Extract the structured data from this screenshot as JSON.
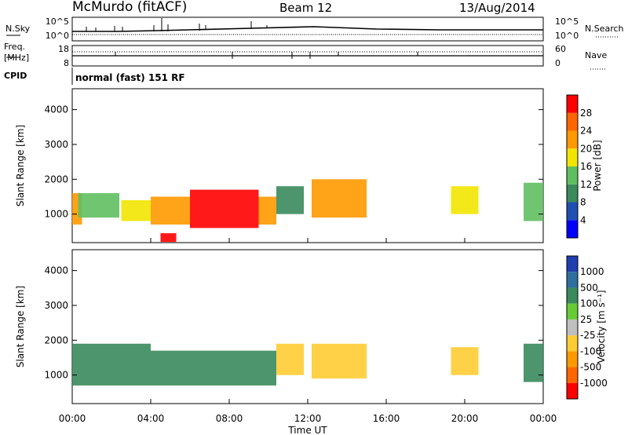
{
  "header": {
    "station": "McMurdo (fitACF)",
    "beam": "Beam 12",
    "date": "13/Aug/2014"
  },
  "status_panel": {
    "nsky_label": "N.Sky",
    "nsearch_label": "N.Search",
    "noise_ticks": [
      "10^5",
      "10^0"
    ],
    "freq_label_1": "Freq.",
    "freq_label_2": "[MHz]",
    "freq_ticks": [
      "18",
      "8"
    ],
    "nave_label": "Nave",
    "nave_ticks": [
      "60",
      "0"
    ],
    "cpid_label": "CPID",
    "cpid_text": "normal (fast) 151 RF"
  },
  "chart_data": [
    {
      "type": "heatmap",
      "name": "power",
      "ylabel": "Slant Range [km]",
      "yticks": [
        "1000",
        "2000",
        "3000",
        "4000"
      ],
      "ylim": [
        180,
        4600
      ],
      "colorbar_label": "Power [dB]",
      "colorbar_ticks": [
        "4",
        "8",
        "12",
        "16",
        "20",
        "24",
        "28"
      ],
      "colors": [
        "#0000ff",
        "#1f4fb0",
        "#3a8a5c",
        "#5fbf60",
        "#f2e600",
        "#ff9900",
        "#ff6600",
        "#ff0000"
      ],
      "regions": [
        {
          "t": [
            0.0,
            0.5
          ],
          "r": [
            700,
            1600
          ],
          "level": 20
        },
        {
          "t": [
            0.3,
            2.4
          ],
          "r": [
            900,
            1600
          ],
          "level": 12
        },
        {
          "t": [
            2.5,
            4.0
          ],
          "r": [
            800,
            1400
          ],
          "level": 16
        },
        {
          "t": [
            4.0,
            6.0
          ],
          "r": [
            700,
            1500
          ],
          "level": 22
        },
        {
          "t": [
            6.0,
            9.5
          ],
          "r": [
            600,
            1700
          ],
          "level": 28
        },
        {
          "t": [
            9.5,
            10.4
          ],
          "r": [
            700,
            1500
          ],
          "level": 20
        },
        {
          "t": [
            10.4,
            11.8
          ],
          "r": [
            1000,
            1800
          ],
          "level": 8
        },
        {
          "t": [
            12.2,
            15.0
          ],
          "r": [
            900,
            2000
          ],
          "level": 20
        },
        {
          "t": [
            19.3,
            20.7
          ],
          "r": [
            1000,
            1800
          ],
          "level": 16
        },
        {
          "t": [
            23.0,
            24.0
          ],
          "r": [
            800,
            1900
          ],
          "level": 12
        },
        {
          "t": [
            4.5,
            5.3
          ],
          "r": [
            200,
            450
          ],
          "level": 28
        }
      ]
    },
    {
      "type": "heatmap",
      "name": "velocity",
      "xlabel": "Time UT",
      "ylabel": "Slant Range [km]",
      "xticks": [
        "00:00",
        "04:00",
        "08:00",
        "12:00",
        "16:00",
        "20:00",
        "00:00"
      ],
      "xlim": [
        0,
        24
      ],
      "yticks": [
        "1000",
        "2000",
        "3000",
        "4000"
      ],
      "ylim": [
        180,
        4600
      ],
      "colorbar_label": "Velocity [m s⁻¹]",
      "colorbar_ticks": [
        "1000",
        "500",
        "100",
        "25",
        "-25",
        "-100",
        "-500",
        "-1000"
      ],
      "colors": [
        "#1f3fb0",
        "#2e6fa0",
        "#3a8a5c",
        "#66cc33",
        "#bfbfbf",
        "#ffcc33",
        "#ff9900",
        "#ff6600",
        "#ff0000"
      ],
      "regions": [
        {
          "t": [
            0.0,
            4.0
          ],
          "r": [
            700,
            1900
          ],
          "level": 100
        },
        {
          "t": [
            4.0,
            10.4
          ],
          "r": [
            700,
            1700
          ],
          "level": 100
        },
        {
          "t": [
            10.4,
            11.8
          ],
          "r": [
            1000,
            1900
          ],
          "level": -100
        },
        {
          "t": [
            12.2,
            15.0
          ],
          "r": [
            900,
            1900
          ],
          "level": -100
        },
        {
          "t": [
            19.3,
            20.7
          ],
          "r": [
            1000,
            1800
          ],
          "level": -100
        },
        {
          "t": [
            23.0,
            24.0
          ],
          "r": [
            800,
            1900
          ],
          "level": 100
        }
      ]
    }
  ]
}
